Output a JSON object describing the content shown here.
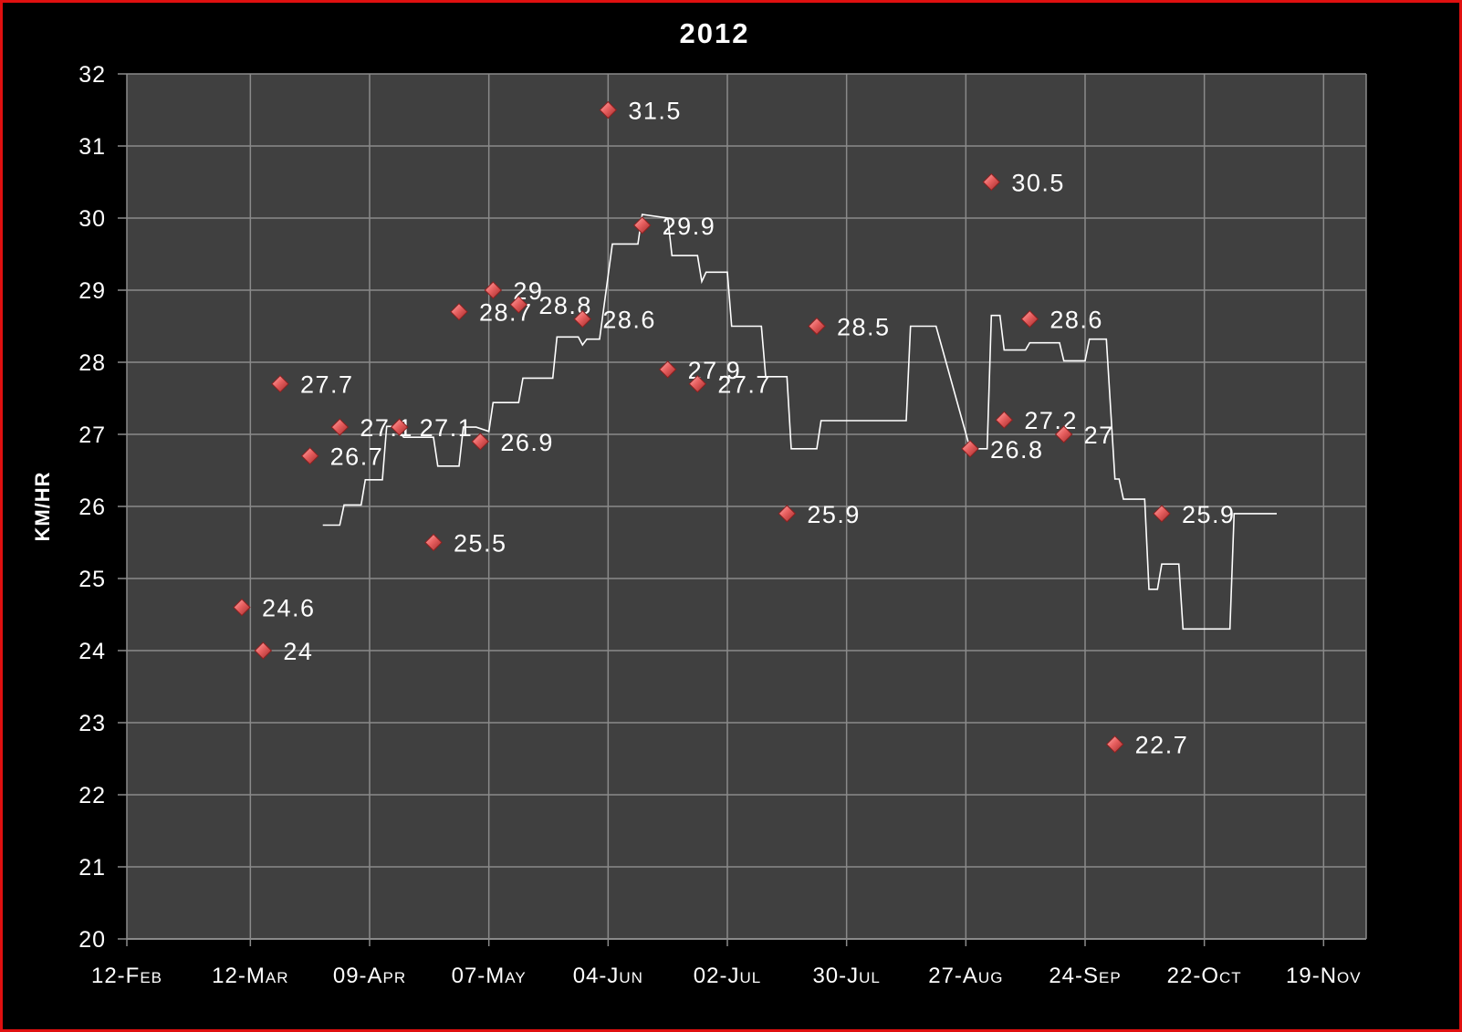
{
  "chart_data": {
    "type": "scatter",
    "title": "2012",
    "xlabel": "",
    "ylabel": "KM/HR",
    "ylim": [
      20,
      32
    ],
    "yticks": [
      "20",
      "21",
      "22",
      "23",
      "24",
      "25",
      "26",
      "27",
      "28",
      "29",
      "30",
      "31",
      "32"
    ],
    "xlim": [
      "2012-02-12",
      "2012-11-29"
    ],
    "xticks": [
      {
        "date": "2012-02-12",
        "label": "12-Feb"
      },
      {
        "date": "2012-03-12",
        "label": "12-Mar"
      },
      {
        "date": "2012-04-09",
        "label": "09-Apr"
      },
      {
        "date": "2012-05-07",
        "label": "07-May"
      },
      {
        "date": "2012-06-04",
        "label": "04-Jun"
      },
      {
        "date": "2012-07-02",
        "label": "02-Jul"
      },
      {
        "date": "2012-07-30",
        "label": "30-Jul"
      },
      {
        "date": "2012-08-27",
        "label": "27-Aug"
      },
      {
        "date": "2012-09-24",
        "label": "24-Sep"
      },
      {
        "date": "2012-10-22",
        "label": "22-Oct"
      },
      {
        "date": "2012-11-19",
        "label": "19-Nov"
      }
    ],
    "grid": true,
    "colors": {
      "background": "#000000",
      "plot_area": "#404040",
      "grid": "#8a8a8a",
      "marker": "#e05a5a",
      "trend_line": "#ffffff",
      "border": "#e01010"
    },
    "points": [
      {
        "x": "2012-03-10",
        "y": 24.6,
        "label": "24.6"
      },
      {
        "x": "2012-03-15",
        "y": 24.0,
        "label": "24"
      },
      {
        "x": "2012-03-19",
        "y": 27.7,
        "label": "27.7"
      },
      {
        "x": "2012-03-26",
        "y": 26.7,
        "label": "26.7"
      },
      {
        "x": "2012-04-02",
        "y": 27.1,
        "label": "27.1"
      },
      {
        "x": "2012-04-16",
        "y": 27.1,
        "label": "27.1"
      },
      {
        "x": "2012-04-24",
        "y": 25.5,
        "label": "25.5"
      },
      {
        "x": "2012-04-30",
        "y": 28.7,
        "label": "28.7"
      },
      {
        "x": "2012-05-05",
        "y": 26.9,
        "label": "26.9"
      },
      {
        "x": "2012-05-08",
        "y": 29.0,
        "label": "29"
      },
      {
        "x": "2012-05-14",
        "y": 28.8,
        "label": "28.8"
      },
      {
        "x": "2012-05-29",
        "y": 28.6,
        "label": "28.6"
      },
      {
        "x": "2012-06-04",
        "y": 31.5,
        "label": "31.5"
      },
      {
        "x": "2012-06-12",
        "y": 29.9,
        "label": "29.9"
      },
      {
        "x": "2012-06-18",
        "y": 27.9,
        "label": "27.9"
      },
      {
        "x": "2012-06-25",
        "y": 27.7,
        "label": "27.7"
      },
      {
        "x": "2012-07-16",
        "y": 25.9,
        "label": "25.9"
      },
      {
        "x": "2012-07-23",
        "y": 28.5,
        "label": "28.5"
      },
      {
        "x": "2012-08-28",
        "y": 26.8,
        "label": "26.8"
      },
      {
        "x": "2012-09-02",
        "y": 30.5,
        "label": "30.5"
      },
      {
        "x": "2012-09-05",
        "y": 27.2,
        "label": "27.2"
      },
      {
        "x": "2012-09-11",
        "y": 28.6,
        "label": "28.6"
      },
      {
        "x": "2012-09-19",
        "y": 27.0,
        "label": "27"
      },
      {
        "x": "2012-10-01",
        "y": 22.7,
        "label": "22.7"
      },
      {
        "x": "2012-10-12",
        "y": 25.9,
        "label": "25.9"
      }
    ],
    "trend_line": [
      [
        "2012-03-29",
        25.74
      ],
      [
        "2012-04-02",
        25.74
      ],
      [
        "2012-04-03",
        26.02
      ],
      [
        "2012-04-07",
        26.02
      ],
      [
        "2012-04-08",
        26.37
      ],
      [
        "2012-04-12",
        26.37
      ],
      [
        "2012-04-13",
        27.11
      ],
      [
        "2012-04-15",
        27.11
      ],
      [
        "2012-04-17",
        26.96
      ],
      [
        "2012-04-24",
        26.96
      ],
      [
        "2012-04-25",
        26.56
      ],
      [
        "2012-04-30",
        26.56
      ],
      [
        "2012-05-01",
        27.1
      ],
      [
        "2012-05-04",
        27.1
      ],
      [
        "2012-05-07",
        27.04
      ],
      [
        "2012-05-08",
        27.44
      ],
      [
        "2012-05-14",
        27.44
      ],
      [
        "2012-05-15",
        27.78
      ],
      [
        "2012-05-22",
        27.78
      ],
      [
        "2012-05-23",
        28.35
      ],
      [
        "2012-05-28",
        28.35
      ],
      [
        "2012-05-29",
        28.24
      ],
      [
        "2012-05-30",
        28.32
      ],
      [
        "2012-06-02",
        28.32
      ],
      [
        "2012-06-05",
        29.64
      ],
      [
        "2012-06-11",
        29.64
      ],
      [
        "2012-06-12",
        30.05
      ],
      [
        "2012-06-18",
        30.0
      ],
      [
        "2012-06-19",
        29.48
      ],
      [
        "2012-06-25",
        29.48
      ],
      [
        "2012-06-26",
        29.12
      ],
      [
        "2012-06-27",
        29.25
      ],
      [
        "2012-07-02",
        29.25
      ],
      [
        "2012-07-03",
        28.5
      ],
      [
        "2012-07-10",
        28.5
      ],
      [
        "2012-07-11",
        27.8
      ],
      [
        "2012-07-16",
        27.8
      ],
      [
        "2012-07-17",
        26.8
      ],
      [
        "2012-07-23",
        26.8
      ],
      [
        "2012-07-24",
        27.19
      ],
      [
        "2012-08-13",
        27.19
      ],
      [
        "2012-08-14",
        28.5
      ],
      [
        "2012-08-20",
        28.5
      ],
      [
        "2012-08-28",
        26.8
      ],
      [
        "2012-09-01",
        26.8
      ],
      [
        "2012-09-02",
        28.65
      ],
      [
        "2012-09-04",
        28.65
      ],
      [
        "2012-09-05",
        28.17
      ],
      [
        "2012-09-10",
        28.17
      ],
      [
        "2012-09-11",
        28.27
      ],
      [
        "2012-09-18",
        28.27
      ],
      [
        "2012-09-19",
        28.02
      ],
      [
        "2012-09-24",
        28.02
      ],
      [
        "2012-09-25",
        28.32
      ],
      [
        "2012-09-29",
        28.32
      ],
      [
        "2012-10-01",
        26.38
      ],
      [
        "2012-10-02",
        26.38
      ],
      [
        "2012-10-03",
        26.1
      ],
      [
        "2012-10-08",
        26.1
      ],
      [
        "2012-10-09",
        24.85
      ],
      [
        "2012-10-11",
        24.85
      ],
      [
        "2012-10-12",
        25.2
      ],
      [
        "2012-10-16",
        25.2
      ],
      [
        "2012-10-17",
        24.3
      ],
      [
        "2012-10-28",
        24.3
      ],
      [
        "2012-10-29",
        25.9
      ],
      [
        "2012-11-08",
        25.9
      ]
    ]
  }
}
